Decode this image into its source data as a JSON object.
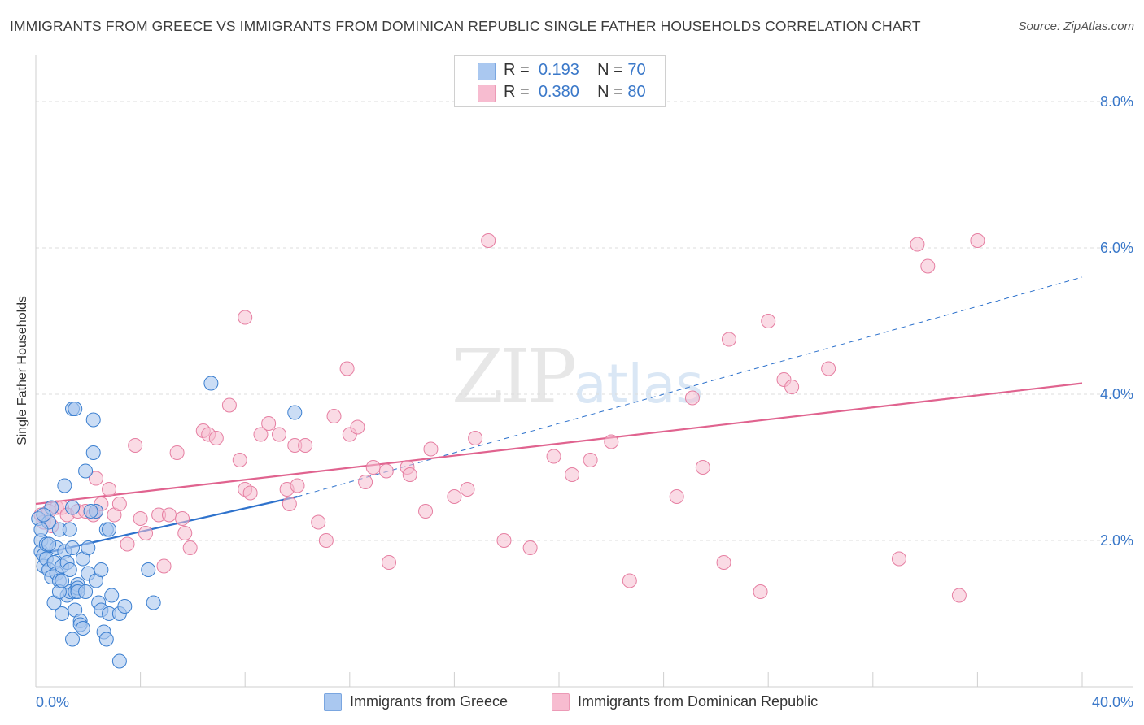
{
  "header": {
    "title": "IMMIGRANTS FROM GREECE VS IMMIGRANTS FROM DOMINICAN REPUBLIC SINGLE FATHER HOUSEHOLDS CORRELATION CHART",
    "source": "Source: ZipAtlas.com"
  },
  "watermark": {
    "zip": "ZIP",
    "atlas": "atlas"
  },
  "legend": {
    "r_label": "R =",
    "n_label": "N =",
    "items": [
      {
        "r": "0.193",
        "n": "70",
        "color": "#aac8f0"
      },
      {
        "r": "0.380",
        "n": "80",
        "color": "#f7bcd0"
      }
    ]
  },
  "colors": {
    "greece_fill": "#a9c7ef",
    "greece_stroke": "#3b7fd0",
    "greece_line": "#2e72cc",
    "dr_fill": "#f6bdd0",
    "dr_stroke": "#e67fa2",
    "dr_line": "#e0638f",
    "value_text": "#3a78c9",
    "grid": "#dcdcdc"
  },
  "chart_data": {
    "type": "scatter",
    "title": "IMMIGRANTS FROM GREECE VS IMMIGRANTS FROM DOMINICAN REPUBLIC SINGLE FATHER HOUSEHOLDS CORRELATION CHART",
    "xlabel": "",
    "ylabel": "Single Father Households",
    "xlim": [
      0,
      40
    ],
    "ylim": [
      0,
      8.5
    ],
    "x_tick_labels": [
      "0.0%",
      "40.0%"
    ],
    "y_tick_labels": [
      "2.0%",
      "4.0%",
      "6.0%",
      "8.0%"
    ],
    "y_ticks": [
      2,
      4,
      6,
      8
    ],
    "grid": true,
    "legend_position": "top-center",
    "series": [
      {
        "name": "Immigrants from Greece",
        "points": [
          [
            0.1,
            2.3
          ],
          [
            0.2,
            2.0
          ],
          [
            0.2,
            1.85
          ],
          [
            0.3,
            1.8
          ],
          [
            0.3,
            1.65
          ],
          [
            0.4,
            1.95
          ],
          [
            0.4,
            1.75
          ],
          [
            0.5,
            2.25
          ],
          [
            0.5,
            1.6
          ],
          [
            0.6,
            2.45
          ],
          [
            0.6,
            1.5
          ],
          [
            0.7,
            1.7
          ],
          [
            0.8,
            1.55
          ],
          [
            0.8,
            1.9
          ],
          [
            0.9,
            2.15
          ],
          [
            0.9,
            1.45
          ],
          [
            1.0,
            1.65
          ],
          [
            1.0,
            1.0
          ],
          [
            1.1,
            1.85
          ],
          [
            1.2,
            1.25
          ],
          [
            1.2,
            1.7
          ],
          [
            1.1,
            2.75
          ],
          [
            1.3,
            1.3
          ],
          [
            1.3,
            1.6
          ],
          [
            1.4,
            2.45
          ],
          [
            1.4,
            3.8
          ],
          [
            1.5,
            1.3
          ],
          [
            1.4,
            1.9
          ],
          [
            1.3,
            2.15
          ],
          [
            1.4,
            0.65
          ],
          [
            1.5,
            1.05
          ],
          [
            1.6,
            1.4
          ],
          [
            1.6,
            1.35
          ],
          [
            1.7,
            0.9
          ],
          [
            1.7,
            0.85
          ],
          [
            1.6,
            1.3
          ],
          [
            1.8,
            1.75
          ],
          [
            1.8,
            0.8
          ],
          [
            1.9,
            2.95
          ],
          [
            2.0,
            1.9
          ],
          [
            2.0,
            1.55
          ],
          [
            2.2,
            3.2
          ],
          [
            2.3,
            2.4
          ],
          [
            2.3,
            1.45
          ],
          [
            2.2,
            3.65
          ],
          [
            2.4,
            1.15
          ],
          [
            2.5,
            1.05
          ],
          [
            2.6,
            0.75
          ],
          [
            2.7,
            2.15
          ],
          [
            2.7,
            0.65
          ],
          [
            2.8,
            1.0
          ],
          [
            2.8,
            2.15
          ],
          [
            2.9,
            1.25
          ],
          [
            3.2,
            1.0
          ],
          [
            3.2,
            0.35
          ],
          [
            3.4,
            1.1
          ],
          [
            1.5,
            3.8
          ],
          [
            4.3,
            1.6
          ],
          [
            4.5,
            1.15
          ],
          [
            6.7,
            4.15
          ],
          [
            9.9,
            3.75
          ],
          [
            0.2,
            2.15
          ],
          [
            0.3,
            2.35
          ],
          [
            0.5,
            1.95
          ],
          [
            0.7,
            1.15
          ],
          [
            0.9,
            1.3
          ],
          [
            2.1,
            2.4
          ],
          [
            1.9,
            1.3
          ],
          [
            1.0,
            1.45
          ],
          [
            2.5,
            1.6
          ]
        ]
      },
      {
        "name": "Immigrants from Dominican Republic",
        "points": [
          [
            0.2,
            2.35
          ],
          [
            0.3,
            2.25
          ],
          [
            0.5,
            2.4
          ],
          [
            0.6,
            2.2
          ],
          [
            0.8,
            2.45
          ],
          [
            1.0,
            2.45
          ],
          [
            1.2,
            2.35
          ],
          [
            1.6,
            2.4
          ],
          [
            1.9,
            2.4
          ],
          [
            2.2,
            2.35
          ],
          [
            2.3,
            2.4
          ],
          [
            2.3,
            2.85
          ],
          [
            2.5,
            2.5
          ],
          [
            2.8,
            2.7
          ],
          [
            3.0,
            2.35
          ],
          [
            3.2,
            2.5
          ],
          [
            3.5,
            1.95
          ],
          [
            3.8,
            3.3
          ],
          [
            4.0,
            2.3
          ],
          [
            4.2,
            2.1
          ],
          [
            4.7,
            2.35
          ],
          [
            4.9,
            1.65
          ],
          [
            5.1,
            2.35
          ],
          [
            5.4,
            3.2
          ],
          [
            5.6,
            2.3
          ],
          [
            5.7,
            2.1
          ],
          [
            5.9,
            1.9
          ],
          [
            6.4,
            3.5
          ],
          [
            6.6,
            3.45
          ],
          [
            6.9,
            3.4
          ],
          [
            7.4,
            3.85
          ],
          [
            7.8,
            3.1
          ],
          [
            8.0,
            2.7
          ],
          [
            8.2,
            2.65
          ],
          [
            8.0,
            5.05
          ],
          [
            8.6,
            3.45
          ],
          [
            8.9,
            3.6
          ],
          [
            9.3,
            3.45
          ],
          [
            9.6,
            2.7
          ],
          [
            9.7,
            2.5
          ],
          [
            9.9,
            3.3
          ],
          [
            10.0,
            2.75
          ],
          [
            10.3,
            3.3
          ],
          [
            10.8,
            2.25
          ],
          [
            11.1,
            2.0
          ],
          [
            11.4,
            3.7
          ],
          [
            11.9,
            4.35
          ],
          [
            12.0,
            3.45
          ],
          [
            12.3,
            3.55
          ],
          [
            12.6,
            2.8
          ],
          [
            12.9,
            3.0
          ],
          [
            13.4,
            2.95
          ],
          [
            13.5,
            1.7
          ],
          [
            14.2,
            3.0
          ],
          [
            14.3,
            2.9
          ],
          [
            14.9,
            2.4
          ],
          [
            15.1,
            3.25
          ],
          [
            16.0,
            2.6
          ],
          [
            16.5,
            2.7
          ],
          [
            16.8,
            3.4
          ],
          [
            17.3,
            6.1
          ],
          [
            17.9,
            2.0
          ],
          [
            18.9,
            1.9
          ],
          [
            19.8,
            3.15
          ],
          [
            20.5,
            2.9
          ],
          [
            21.2,
            3.1
          ],
          [
            22.0,
            3.35
          ],
          [
            22.7,
            1.45
          ],
          [
            24.5,
            2.6
          ],
          [
            25.1,
            3.95
          ],
          [
            25.5,
            3.0
          ],
          [
            26.3,
            1.7
          ],
          [
            26.5,
            4.75
          ],
          [
            27.7,
            1.3
          ],
          [
            28.0,
            5.0
          ],
          [
            28.6,
            4.2
          ],
          [
            28.9,
            4.1
          ],
          [
            30.3,
            4.35
          ],
          [
            33.0,
            1.75
          ],
          [
            33.7,
            6.05
          ]
        ]
      }
    ],
    "extra_points_dr": [
      [
        34.1,
        5.75
      ],
      [
        35.3,
        1.25
      ],
      [
        36.0,
        6.1
      ]
    ],
    "trend_lines": [
      {
        "series": "Immigrants from Greece",
        "x": [
          0,
          10
        ],
        "y": [
          1.8,
          2.6
        ],
        "style": "solid"
      },
      {
        "series": "Immigrants from Greece",
        "x": [
          10,
          40
        ],
        "y": [
          2.6,
          5.6
        ],
        "style": "dashed"
      },
      {
        "series": "Immigrants from Dominican Republic",
        "x": [
          0,
          40
        ],
        "y": [
          2.5,
          4.15
        ],
        "style": "solid"
      }
    ]
  }
}
